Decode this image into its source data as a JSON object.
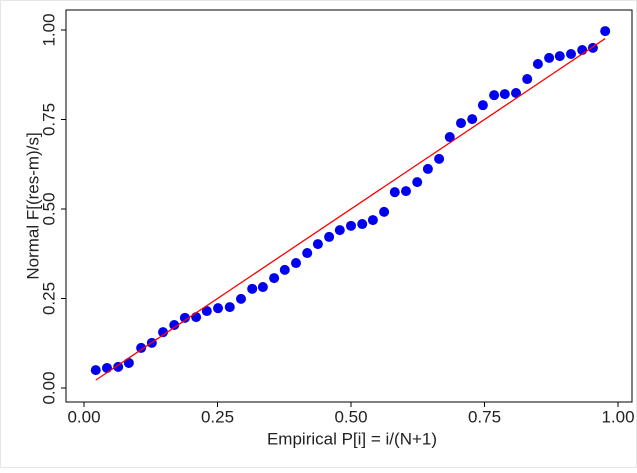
{
  "chart_data": {
    "type": "scatter",
    "x_label": "Empirical P[i] = i/(N+1)",
    "y_label": "Normal F[(res-m)/s]",
    "xlim": [
      0,
      1
    ],
    "ylim": [
      0,
      1
    ],
    "xticks": [
      {
        "value": 0,
        "label": "0.00"
      },
      {
        "value": 0.25,
        "label": "0.25"
      },
      {
        "value": 0.5,
        "label": "0.50"
      },
      {
        "value": 0.75,
        "label": "0.75"
      },
      {
        "value": 1,
        "label": "1.00"
      }
    ],
    "yticks": [
      {
        "value": 0,
        "label": "0.00"
      },
      {
        "value": 0.25,
        "label": "0.25"
      },
      {
        "value": 0.5,
        "label": "0.50"
      },
      {
        "value": 0.75,
        "label": "0.75"
      },
      {
        "value": 1,
        "label": "1.00"
      }
    ],
    "color": "#0000ee",
    "x": [
      0.022,
      0.043,
      0.064,
      0.084,
      0.107,
      0.127,
      0.148,
      0.169,
      0.189,
      0.21,
      0.23,
      0.251,
      0.273,
      0.294,
      0.315,
      0.335,
      0.356,
      0.376,
      0.397,
      0.418,
      0.438,
      0.459,
      0.479,
      0.5,
      0.521,
      0.541,
      0.562,
      0.582,
      0.603,
      0.624,
      0.644,
      0.665,
      0.685,
      0.706,
      0.727,
      0.747,
      0.768,
      0.788,
      0.809,
      0.83,
      0.85,
      0.871,
      0.891,
      0.912,
      0.933,
      0.953,
      0.976
    ],
    "y": [
      0.05,
      0.056,
      0.059,
      0.07,
      0.112,
      0.126,
      0.156,
      0.176,
      0.196,
      0.198,
      0.215,
      0.223,
      0.226,
      0.249,
      0.277,
      0.282,
      0.307,
      0.33,
      0.349,
      0.377,
      0.402,
      0.422,
      0.441,
      0.453,
      0.458,
      0.469,
      0.492,
      0.547,
      0.55,
      0.575,
      0.612,
      0.64,
      0.701,
      0.74,
      0.751,
      0.79,
      0.818,
      0.821,
      0.824,
      0.863,
      0.905,
      0.922,
      0.927,
      0.933,
      0.944,
      0.95,
      0.997
    ],
    "reference_line": {
      "color": "#ff0000",
      "x": [
        0.022,
        0.976
      ],
      "y": [
        0.022,
        0.976
      ]
    }
  }
}
